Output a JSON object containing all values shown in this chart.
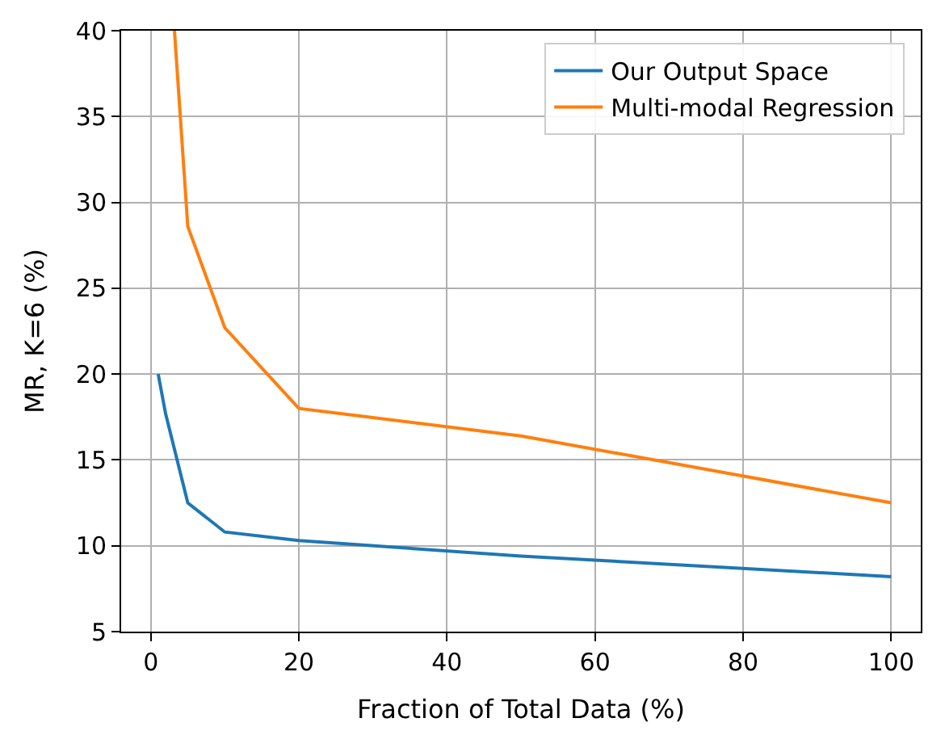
{
  "chart_data": {
    "type": "line",
    "xlabel": "Fraction of Total Data (%)",
    "ylabel": "MR, K=6 (%)",
    "xlim": [
      -4,
      104
    ],
    "ylim": [
      5,
      40
    ],
    "xticks": [
      0,
      20,
      40,
      60,
      80,
      100
    ],
    "yticks": [
      5,
      10,
      15,
      20,
      25,
      30,
      35,
      40
    ],
    "grid": true,
    "legend": "top right",
    "series": [
      {
        "name": "Our Output Space",
        "color": "#1f77b4",
        "x": [
          1,
          2,
          5,
          10,
          20,
          50,
          100
        ],
        "values": [
          20,
          17.7,
          12.5,
          10.8,
          10.3,
          9.4,
          8.2
        ]
      },
      {
        "name": "Multi-modal Regression",
        "color": "#ff7f0e",
        "x": [
          3.2,
          5,
          10,
          20,
          50,
          100
        ],
        "values": [
          40,
          28.6,
          22.7,
          18.0,
          16.4,
          12.5
        ]
      }
    ]
  }
}
